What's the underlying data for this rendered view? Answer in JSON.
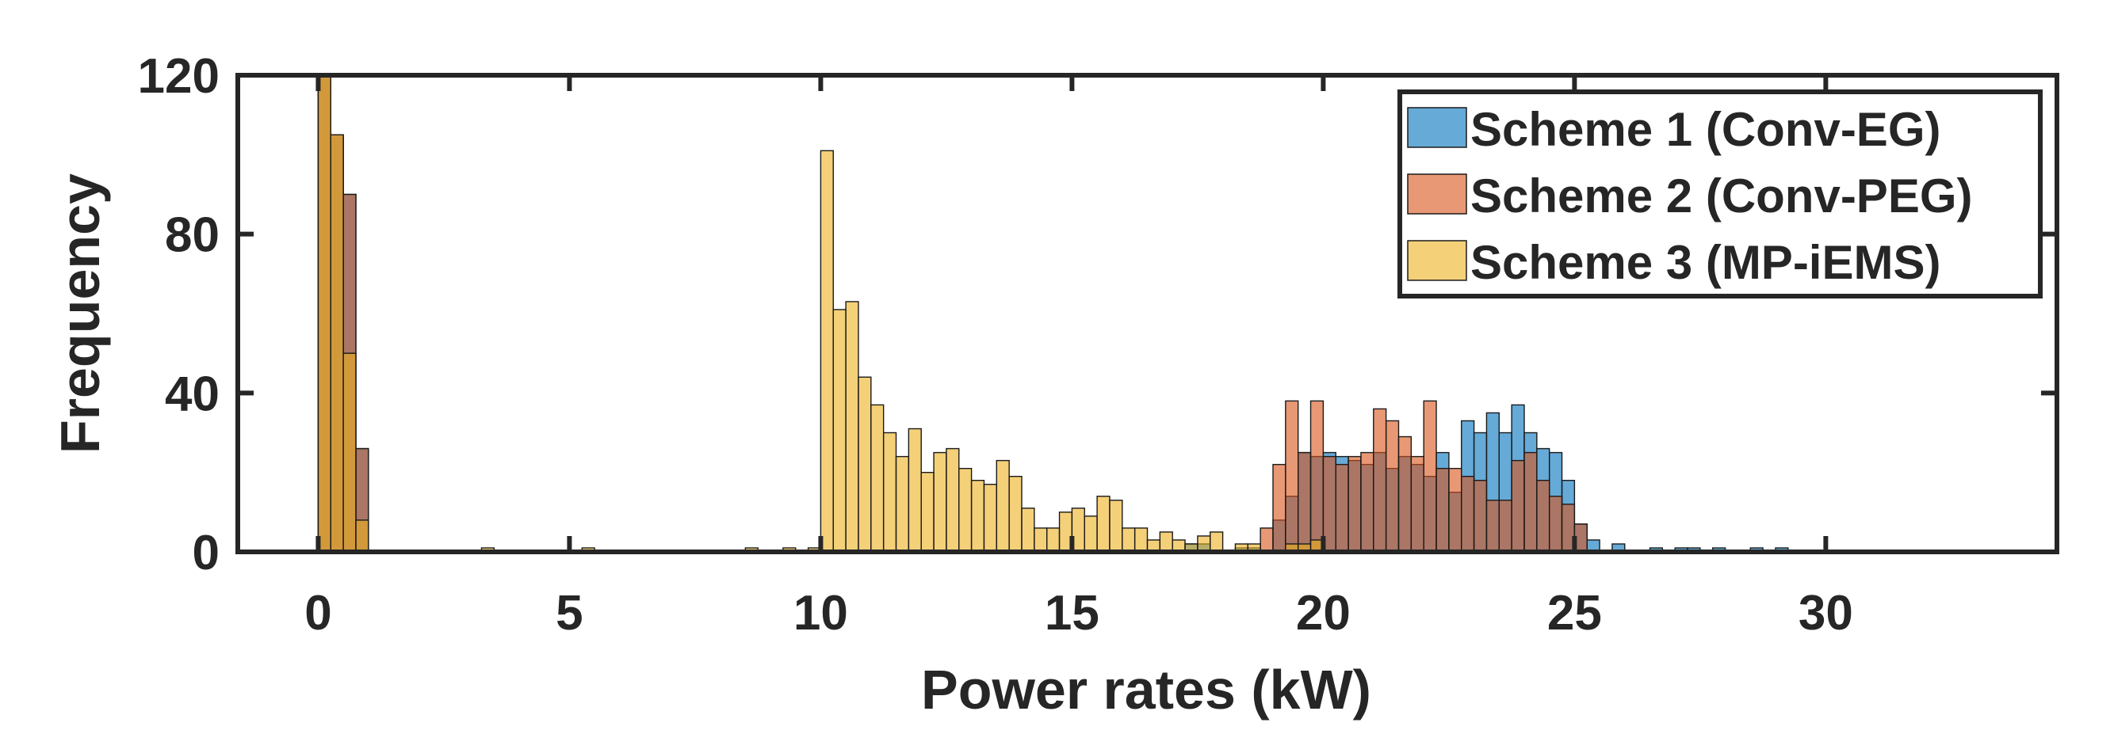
{
  "chart_data": {
    "type": "bar",
    "title": "",
    "xlabel": "Power rates (kW)",
    "ylabel": "Frequency",
    "xlim": [
      -1.6,
      34.6
    ],
    "ylim": [
      0,
      120
    ],
    "xticks": [
      0,
      5,
      10,
      15,
      20,
      25,
      30
    ],
    "yticks": [
      0,
      40,
      80,
      120
    ],
    "bin_width": 0.25,
    "legend_position": "top-right",
    "series": [
      {
        "name": "Scheme 1 (Conv-EG)",
        "color": "#0072BD",
        "opacity": 0.6,
        "bins": [
          [
            0.0,
            120
          ],
          [
            0.25,
            105
          ],
          [
            0.5,
            90
          ],
          [
            0.75,
            26
          ],
          [
            17.25,
            2
          ],
          [
            17.5,
            2
          ],
          [
            18.25,
            1
          ],
          [
            18.5,
            1
          ],
          [
            19.0,
            8
          ],
          [
            19.25,
            14
          ],
          [
            19.5,
            25
          ],
          [
            19.75,
            24
          ],
          [
            20.0,
            25
          ],
          [
            20.25,
            24
          ],
          [
            20.5,
            23
          ],
          [
            20.75,
            22
          ],
          [
            21.0,
            25
          ],
          [
            21.25,
            21
          ],
          [
            21.5,
            24
          ],
          [
            21.75,
            22
          ],
          [
            22.0,
            19
          ],
          [
            22.25,
            25
          ],
          [
            22.5,
            15
          ],
          [
            22.75,
            33
          ],
          [
            23.0,
            30
          ],
          [
            23.25,
            35
          ],
          [
            23.5,
            30
          ],
          [
            23.75,
            37
          ],
          [
            24.0,
            30
          ],
          [
            24.25,
            26
          ],
          [
            24.5,
            25
          ],
          [
            24.75,
            18
          ],
          [
            25.0,
            7
          ],
          [
            25.25,
            3
          ],
          [
            25.75,
            2
          ],
          [
            26.5,
            1
          ],
          [
            27.0,
            1
          ],
          [
            27.25,
            1
          ],
          [
            27.75,
            1
          ],
          [
            28.5,
            1
          ],
          [
            29.0,
            1
          ]
        ]
      },
      {
        "name": "Scheme 2 (Conv-PEG)",
        "color": "#D95319",
        "opacity": 0.6,
        "bins": [
          [
            0.0,
            120
          ],
          [
            0.25,
            105
          ],
          [
            0.5,
            90
          ],
          [
            0.75,
            26
          ],
          [
            18.75,
            6
          ],
          [
            19.0,
            22
          ],
          [
            19.25,
            38
          ],
          [
            19.5,
            25
          ],
          [
            19.75,
            38
          ],
          [
            20.0,
            24
          ],
          [
            20.25,
            22
          ],
          [
            20.5,
            24
          ],
          [
            20.75,
            25
          ],
          [
            21.0,
            36
          ],
          [
            21.25,
            33
          ],
          [
            21.5,
            29
          ],
          [
            21.75,
            24
          ],
          [
            22.0,
            38
          ],
          [
            22.25,
            21
          ],
          [
            22.5,
            21
          ],
          [
            22.75,
            19
          ],
          [
            23.0,
            18
          ],
          [
            23.25,
            13
          ],
          [
            23.5,
            13
          ],
          [
            23.75,
            23
          ],
          [
            24.0,
            25
          ],
          [
            24.25,
            18
          ],
          [
            24.5,
            14
          ],
          [
            24.75,
            12
          ],
          [
            25.0,
            7
          ]
        ]
      },
      {
        "name": "Scheme 3 (MP-iEMS)",
        "color": "#EDB120",
        "opacity": 0.6,
        "bins": [
          [
            0.0,
            120
          ],
          [
            0.25,
            105
          ],
          [
            0.5,
            50
          ],
          [
            0.75,
            8
          ],
          [
            3.25,
            1
          ],
          [
            5.25,
            1
          ],
          [
            8.5,
            1
          ],
          [
            9.25,
            1
          ],
          [
            9.75,
            1
          ],
          [
            10.0,
            101
          ],
          [
            10.25,
            61
          ],
          [
            10.5,
            63
          ],
          [
            10.75,
            44
          ],
          [
            11.0,
            37
          ],
          [
            11.25,
            30
          ],
          [
            11.5,
            24
          ],
          [
            11.75,
            31
          ],
          [
            12.0,
            20
          ],
          [
            12.25,
            25
          ],
          [
            12.5,
            26
          ],
          [
            12.75,
            21
          ],
          [
            13.0,
            18
          ],
          [
            13.25,
            17
          ],
          [
            13.5,
            23
          ],
          [
            13.75,
            19
          ],
          [
            14.0,
            11
          ],
          [
            14.25,
            6
          ],
          [
            14.5,
            6
          ],
          [
            14.75,
            10
          ],
          [
            15.0,
            11
          ],
          [
            15.25,
            9
          ],
          [
            15.5,
            14
          ],
          [
            15.75,
            13
          ],
          [
            16.0,
            6
          ],
          [
            16.25,
            6
          ],
          [
            16.5,
            3
          ],
          [
            16.75,
            5
          ],
          [
            17.0,
            3
          ],
          [
            17.25,
            2
          ],
          [
            17.5,
            4
          ],
          [
            17.75,
            5
          ],
          [
            18.25,
            2
          ],
          [
            18.5,
            2
          ],
          [
            19.25,
            2
          ],
          [
            19.5,
            2
          ],
          [
            19.75,
            3
          ]
        ]
      }
    ]
  }
}
